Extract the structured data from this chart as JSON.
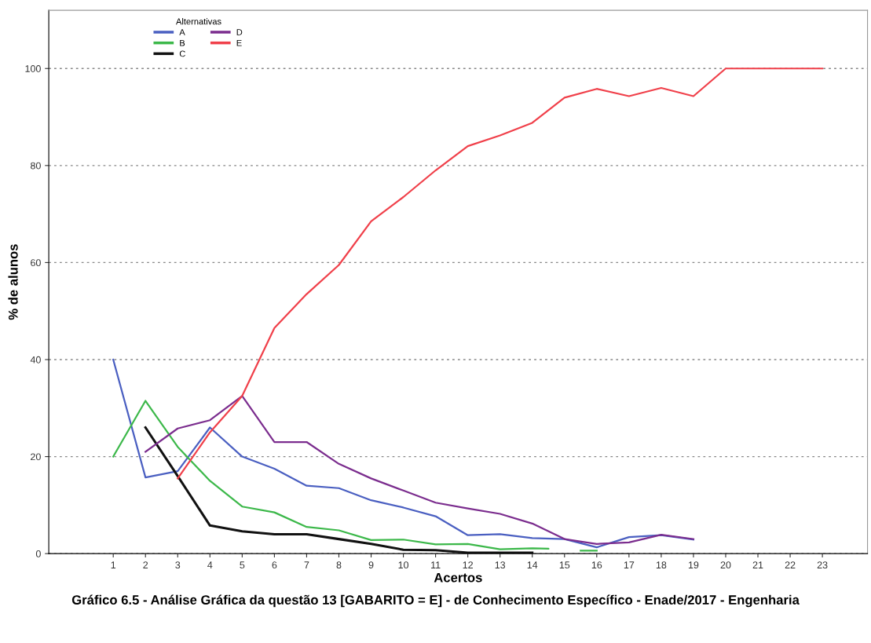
{
  "chart_data": {
    "type": "line",
    "xlabel": "Acertos",
    "ylabel": "% de alunos",
    "legend_title": "Alternativas",
    "annotations": [
      "Gráfico 6.5 - Análise Gráfica da questão 13 [GABARITO = E] - de Conhecimento Específico - Enade/2017 - Engenharia"
    ],
    "xlim": [
      -1,
      24.4
    ],
    "xticks": [
      1,
      2,
      3,
      4,
      5,
      6,
      7,
      8,
      9,
      10,
      11,
      12,
      13,
      14,
      15,
      16,
      17,
      18,
      19,
      20,
      21,
      22,
      23
    ],
    "ylim": [
      0,
      112
    ],
    "yticks": [
      0,
      20,
      40,
      60,
      80,
      100
    ],
    "grid": "y",
    "legend": "top left",
    "marker": "none",
    "line_style": "solid",
    "series": [
      {
        "name": "A",
        "color": "#4a5fc1",
        "x": [
          1,
          2,
          3,
          4,
          5,
          6,
          7,
          8,
          9,
          10,
          11,
          12,
          13,
          14,
          15,
          16,
          17,
          18,
          19
        ],
        "values": [
          40,
          15.7,
          17,
          26,
          20,
          17.5,
          14,
          13.5,
          11,
          9.5,
          7.7,
          3.8,
          4,
          3.2,
          3,
          1.3,
          3.4,
          3.8,
          2.9
        ]
      },
      {
        "name": "B",
        "color": "#3cb84a",
        "x": [
          1,
          2,
          3,
          4,
          5,
          6,
          7,
          8,
          9,
          10,
          11,
          12,
          13,
          14,
          14.5,
          15,
          15.5,
          16
        ],
        "values": [
          20,
          31.5,
          22,
          15,
          9.7,
          8.5,
          5.5,
          4.8,
          2.8,
          2.9,
          1.9,
          2,
          0.9,
          1.1,
          1.0,
          null,
          0.6,
          0.6
        ]
      },
      {
        "name": "C",
        "color": "#111111",
        "x": [
          2,
          3,
          4,
          5,
          6,
          7,
          8,
          9,
          10,
          11,
          12,
          13,
          14
        ],
        "values": [
          26,
          16,
          5.8,
          4.6,
          4,
          4,
          3,
          2,
          0.8,
          0.7,
          0.2,
          0.2,
          0.2
        ]
      },
      {
        "name": "D",
        "color": "#7b2d8e",
        "x": [
          2,
          3,
          4,
          5,
          6,
          7,
          8,
          9,
          10,
          11,
          12,
          13,
          14,
          15,
          16,
          17,
          18,
          19
        ],
        "values": [
          21,
          25.8,
          27.5,
          32.5,
          23,
          23,
          18.5,
          15.5,
          13,
          10.5,
          9.3,
          8.2,
          6.2,
          3,
          2,
          2.3,
          3.9,
          3
        ]
      },
      {
        "name": "E",
        "color": "#f0404a",
        "x": [
          3,
          4,
          5,
          6,
          7,
          8,
          9,
          10,
          11,
          12,
          13,
          14,
          15,
          16,
          17,
          18,
          19,
          20,
          21,
          22,
          23
        ],
        "values": [
          15.5,
          25,
          32.5,
          46.5,
          53.5,
          59.5,
          68.5,
          73.5,
          79,
          84,
          86.2,
          88.8,
          94,
          95.8,
          94.3,
          96,
          94.3,
          100,
          100,
          100,
          100
        ]
      }
    ]
  }
}
